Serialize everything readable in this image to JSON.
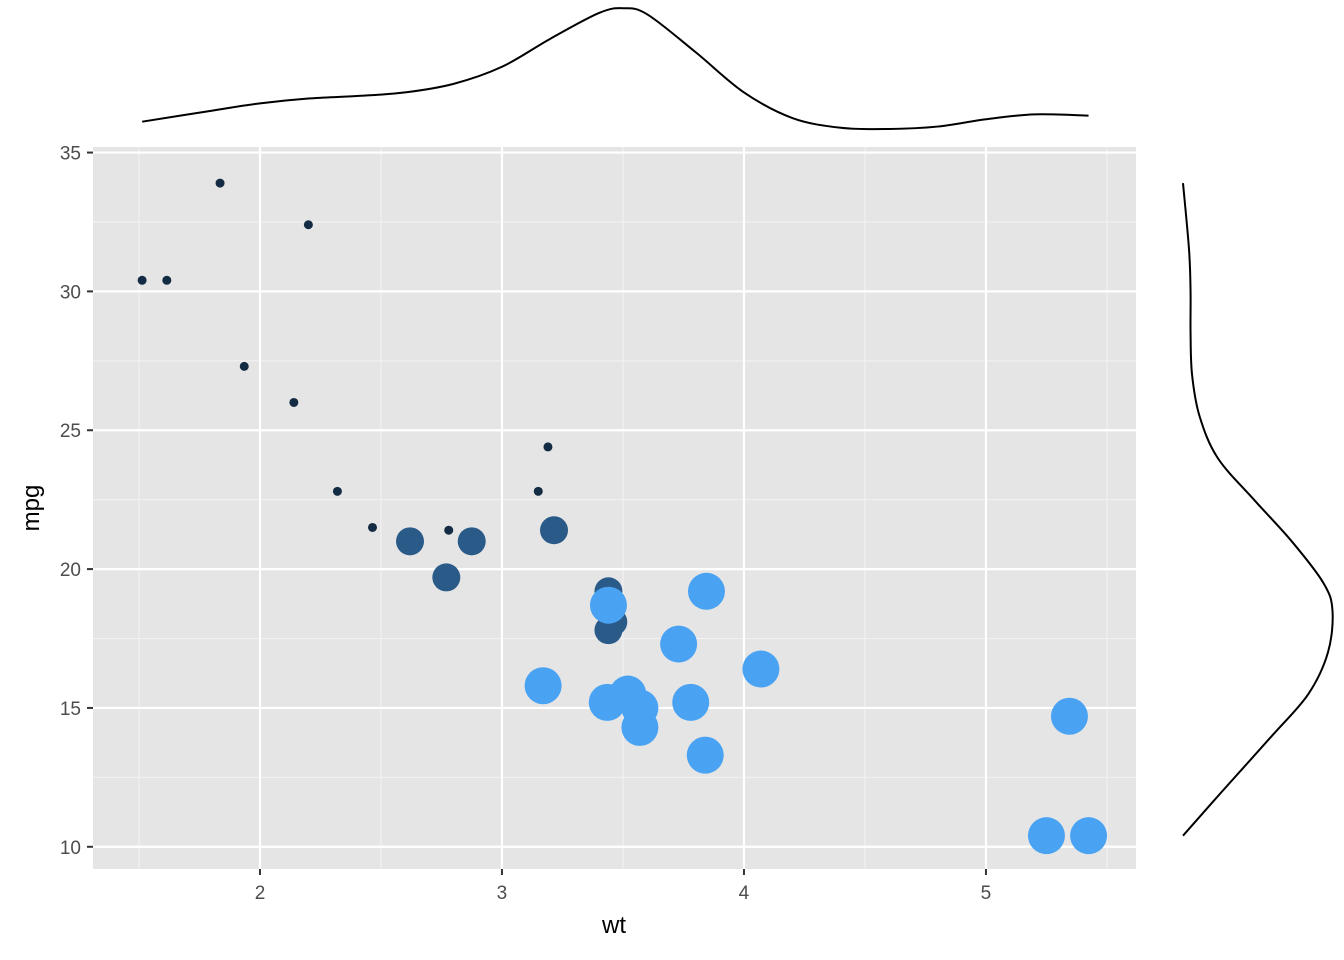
{
  "chart_data": {
    "type": "scatter",
    "title": "",
    "xlabel": "wt",
    "ylabel": "mpg",
    "xlim": [
      1.31,
      5.62
    ],
    "ylim": [
      9.2,
      35.2
    ],
    "x_major_ticks": [
      2,
      3,
      4,
      5
    ],
    "y_major_ticks": [
      10,
      15,
      20,
      25,
      30,
      35
    ],
    "x_tick_labels": [
      "2",
      "3",
      "4",
      "5"
    ],
    "y_tick_labels": [
      "10",
      "15",
      "20",
      "25",
      "30",
      "35"
    ],
    "grid": true,
    "legend": "none",
    "panel_background": "#e5e5e5",
    "point_colors": {
      "4": "#132b43",
      "6": "#2a5a88",
      "8": "#4aa3f2"
    },
    "point_sizes": {
      "4": 1,
      "6": 3,
      "8": 4
    },
    "groups": [
      "4",
      "6",
      "8"
    ],
    "points": [
      {
        "x": 2.62,
        "y": 21.0,
        "group": "6"
      },
      {
        "x": 2.875,
        "y": 21.0,
        "group": "6"
      },
      {
        "x": 2.32,
        "y": 22.8,
        "group": "4"
      },
      {
        "x": 3.215,
        "y": 21.4,
        "group": "6"
      },
      {
        "x": 3.44,
        "y": 18.7,
        "group": "8"
      },
      {
        "x": 3.46,
        "y": 18.1,
        "group": "6"
      },
      {
        "x": 3.57,
        "y": 14.3,
        "group": "8"
      },
      {
        "x": 3.19,
        "y": 24.4,
        "group": "4"
      },
      {
        "x": 3.15,
        "y": 22.8,
        "group": "4"
      },
      {
        "x": 3.44,
        "y": 19.2,
        "group": "6"
      },
      {
        "x": 3.44,
        "y": 17.8,
        "group": "6"
      },
      {
        "x": 4.07,
        "y": 16.4,
        "group": "8"
      },
      {
        "x": 3.73,
        "y": 17.3,
        "group": "8"
      },
      {
        "x": 3.78,
        "y": 15.2,
        "group": "8"
      },
      {
        "x": 5.25,
        "y": 10.4,
        "group": "8"
      },
      {
        "x": 5.424,
        "y": 10.4,
        "group": "8"
      },
      {
        "x": 5.345,
        "y": 14.7,
        "group": "8"
      },
      {
        "x": 2.2,
        "y": 32.4,
        "group": "4"
      },
      {
        "x": 1.615,
        "y": 30.4,
        "group": "4"
      },
      {
        "x": 1.835,
        "y": 33.9,
        "group": "4"
      },
      {
        "x": 2.465,
        "y": 21.5,
        "group": "4"
      },
      {
        "x": 3.52,
        "y": 15.5,
        "group": "8"
      },
      {
        "x": 3.435,
        "y": 15.2,
        "group": "8"
      },
      {
        "x": 3.84,
        "y": 13.3,
        "group": "8"
      },
      {
        "x": 3.845,
        "y": 19.2,
        "group": "8"
      },
      {
        "x": 1.935,
        "y": 27.3,
        "group": "4"
      },
      {
        "x": 2.14,
        "y": 26.0,
        "group": "4"
      },
      {
        "x": 1.513,
        "y": 30.4,
        "group": "4"
      },
      {
        "x": 3.17,
        "y": 15.8,
        "group": "8"
      },
      {
        "x": 2.77,
        "y": 19.7,
        "group": "6"
      },
      {
        "x": 3.57,
        "y": 15.0,
        "group": "8"
      },
      {
        "x": 2.78,
        "y": 21.4,
        "group": "4"
      }
    ],
    "marginal_density_x": {
      "x": [
        1.513,
        1.8,
        2.0,
        2.2,
        2.4,
        2.6,
        2.8,
        3.0,
        3.2,
        3.4,
        3.5,
        3.6,
        3.8,
        4.0,
        4.2,
        4.4,
        4.6,
        4.8,
        5.0,
        5.2,
        5.424
      ],
      "density": [
        0.06,
        0.15,
        0.21,
        0.25,
        0.27,
        0.3,
        0.37,
        0.51,
        0.74,
        0.95,
        0.99,
        0.94,
        0.63,
        0.3,
        0.09,
        0.01,
        0.0,
        0.02,
        0.08,
        0.12,
        0.11
      ]
    },
    "marginal_density_y": {
      "y": [
        10.4,
        12.0,
        14.0,
        15.5,
        17.0,
        18.5,
        19.5,
        21.0,
        22.5,
        24.0,
        25.5,
        27.0,
        28.5,
        30.0,
        31.5,
        33.9
      ],
      "density": [
        0.0,
        0.26,
        0.59,
        0.83,
        0.96,
        0.99,
        0.93,
        0.72,
        0.47,
        0.23,
        0.11,
        0.06,
        0.05,
        0.05,
        0.04,
        0.0
      ]
    }
  }
}
